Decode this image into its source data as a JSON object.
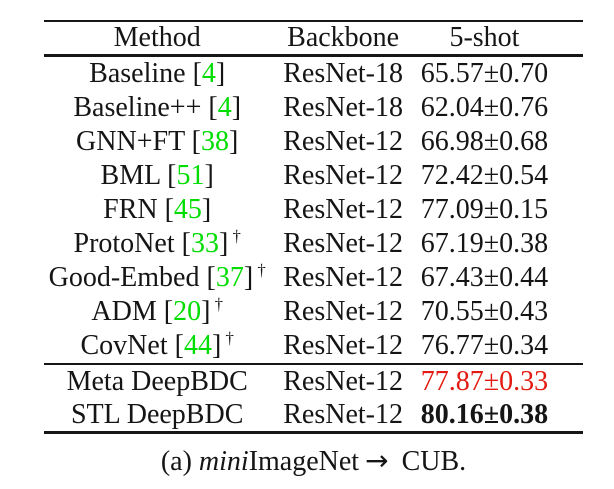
{
  "colors": {
    "text": "#151515",
    "rule": "#161616",
    "citation_green": "#00dd00",
    "highlight_red": "#e31b12",
    "background": "#ffffff"
  },
  "table": {
    "headers": {
      "method": "Method",
      "backbone": "Backbone",
      "shot": "5-shot"
    },
    "rows": [
      {
        "method": "Baseline",
        "cite_open": " [",
        "cite": "4",
        "cite_close": "]",
        "backbone": "ResNet-18",
        "value": "65.57±0.70"
      },
      {
        "method": "Baseline++",
        "cite_open": " [",
        "cite": "4",
        "cite_close": "]",
        "backbone": "ResNet-18",
        "value": "62.04±0.76"
      },
      {
        "method": "GNN+FT",
        "cite_open": " [",
        "cite": "38",
        "cite_close": "]",
        "backbone": "ResNet-12",
        "value": "66.98±0.68"
      },
      {
        "method": "BML",
        "cite_open": " [",
        "cite": "51",
        "cite_close": "]",
        "backbone": "ResNet-12",
        "value": "72.42±0.54"
      },
      {
        "method": "FRN",
        "cite_open": " [",
        "cite": "45",
        "cite_close": "]",
        "backbone": "ResNet-12",
        "value": "77.09±0.15"
      },
      {
        "method": "ProtoNet",
        "cite_open": " [",
        "cite": "33",
        "cite_close": "]",
        "dagger": " †",
        "backbone": "ResNet-12",
        "value": "67.19±0.38"
      },
      {
        "method": "Good-Embed",
        "cite_open": " [",
        "cite": "37",
        "cite_close": "]",
        "dagger": " †",
        "backbone": "ResNet-12",
        "value": "67.43±0.44"
      },
      {
        "method": "ADM",
        "cite_open": " [",
        "cite": "20",
        "cite_close": "]",
        "dagger": " †",
        "backbone": "ResNet-12",
        "value": "70.55±0.43"
      },
      {
        "method": "CovNet",
        "cite_open": " [",
        "cite": "44",
        "cite_close": "]",
        "dagger": " †",
        "backbone": "ResNet-12",
        "value": "76.77±0.34"
      }
    ],
    "highlight_rows": [
      {
        "method": "Meta DeepBDC",
        "backbone": "ResNet-12",
        "value": "77.87±0.33",
        "style": "red"
      },
      {
        "method": "STL DeepBDC",
        "backbone": "ResNet-12",
        "value": "80.16±0.38",
        "style": "bold"
      }
    ]
  },
  "caption": {
    "index": "(a) ",
    "dataset_italic": "mini",
    "dataset_rest": "ImageNet",
    "arrow": "→",
    "target": " CUB."
  }
}
